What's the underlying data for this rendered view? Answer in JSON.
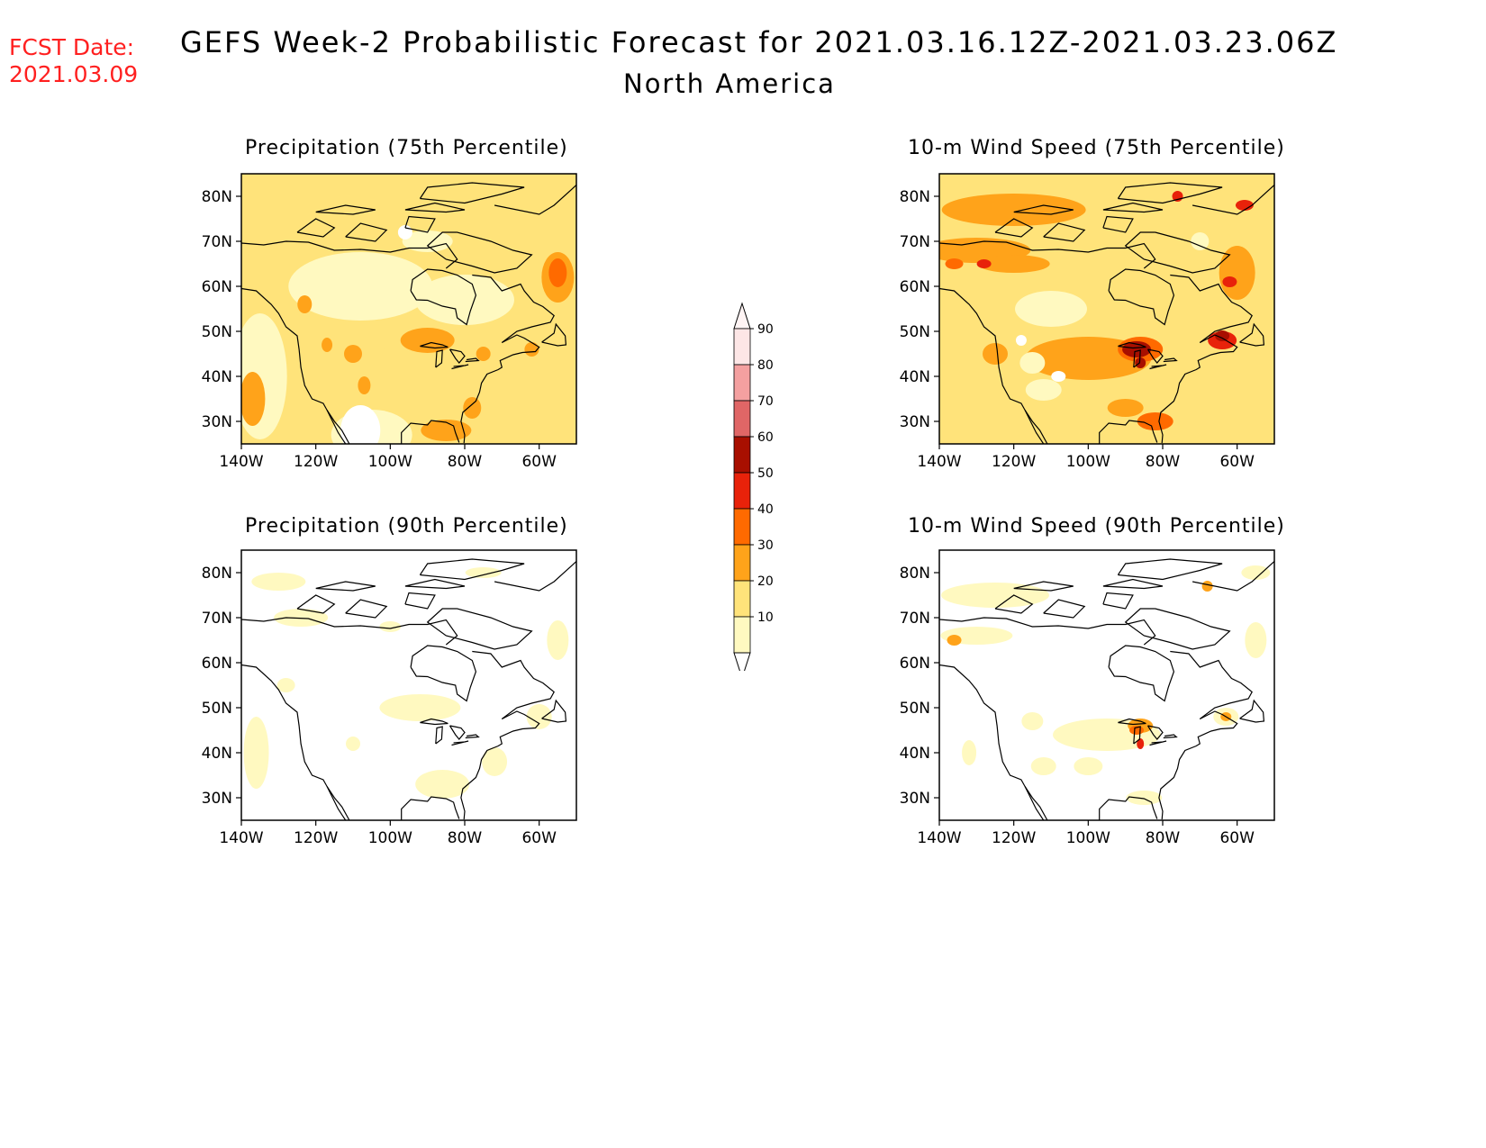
{
  "header": {
    "fcst_label": "FCST Date:",
    "fcst_date": "2021.03.09",
    "title": "GEFS Week-2 Probabilistic Forecast for 2021.03.16.12Z-2021.03.23.06Z",
    "region": "North America"
  },
  "map_axes": {
    "lat_ticks": [
      "80N",
      "70N",
      "60N",
      "50N",
      "40N",
      "30N"
    ],
    "lon_ticks": [
      "140W",
      "120W",
      "100W",
      "80W",
      "60W"
    ],
    "lat_range": [
      25,
      85
    ],
    "lon_range": [
      -140,
      -50
    ]
  },
  "panels": [
    {
      "id": "precip75",
      "title": "Precipitation (75th Percentile)"
    },
    {
      "id": "wind75",
      "title": "10-m Wind Speed (75th Percentile)"
    },
    {
      "id": "precip90",
      "title": "Precipitation (90th Percentile)"
    },
    {
      "id": "wind90",
      "title": "10-m Wind Speed (90th Percentile)"
    }
  ],
  "colorbar": {
    "levels": [
      "10",
      "20",
      "30",
      "40",
      "50",
      "60",
      "70",
      "80",
      "90"
    ],
    "colors": [
      "#fff9c0",
      "#ffe37a",
      "#ffa31a",
      "#ff6a00",
      "#e8220a",
      "#a80f00",
      "#e06666",
      "#f4a0a0",
      "#fde6e6"
    ]
  }
}
